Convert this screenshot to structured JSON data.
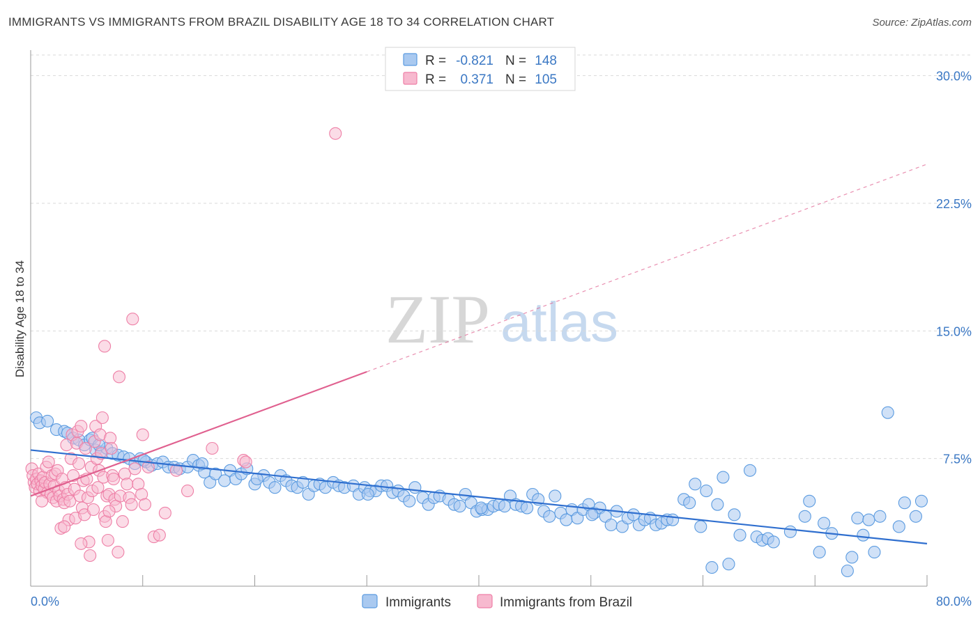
{
  "header": {
    "title": "IMMIGRANTS VS IMMIGRANTS FROM BRAZIL DISABILITY AGE 18 TO 34 CORRELATION CHART",
    "source": "Source: ZipAtlas.com"
  },
  "watermark": {
    "zip": "ZIP",
    "atlas": "atlas"
  },
  "colors": {
    "blue": "#5b9be0",
    "blue_fill": "#a9c9f0",
    "blue_line": "#2f6fcf",
    "pink": "#ee7fa6",
    "pink_fill": "#f7b9cf",
    "pink_line": "#e0608f",
    "axis_text": "#3b78c4",
    "grid": "#d9d9d9"
  },
  "legend": {
    "rows": [
      {
        "r_label": "R =",
        "r_value": "-0.821",
        "n_label": "N =",
        "n_value": "148"
      },
      {
        "r_label": "R =",
        "r_value": "0.371",
        "n_label": "N =",
        "n_value": "105"
      }
    ]
  },
  "chart_data": {
    "type": "scatter",
    "title": "IMMIGRANTS VS IMMIGRANTS FROM BRAZIL DISABILITY AGE 18 TO 34 CORRELATION CHART",
    "xlabel": "",
    "ylabel": "Disability Age 18 to 34",
    "xlim": [
      0,
      80
    ],
    "ylim": [
      0,
      31.5
    ],
    "x_tick_labels": [
      "0.0%",
      "80.0%"
    ],
    "y_ticks": [
      7.5,
      15.0,
      22.5,
      30.0
    ],
    "y_tick_labels": [
      "7.5%",
      "15.0%",
      "22.5%",
      "30.0%"
    ],
    "grid": true,
    "series": [
      {
        "name": "Immigrants",
        "color": "#5b9be0",
        "R": -0.821,
        "N": 148,
        "trend": {
          "x": [
            0,
            80
          ],
          "y": [
            8.0,
            2.5
          ],
          "dashed_extension": false
        },
        "points": [
          [
            0.5,
            9.9
          ],
          [
            0.8,
            9.6
          ],
          [
            1.5,
            9.7
          ],
          [
            2.3,
            9.2
          ],
          [
            3,
            9.1
          ],
          [
            3.3,
            9.0
          ],
          [
            3.8,
            8.7
          ],
          [
            4.3,
            8.6
          ],
          [
            4.8,
            8.3
          ],
          [
            5.3,
            8.6
          ],
          [
            5.8,
            8.0
          ],
          [
            6.3,
            7.9
          ],
          [
            6.8,
            8.1
          ],
          [
            7.3,
            7.8
          ],
          [
            7.8,
            7.7
          ],
          [
            8.3,
            7.6
          ],
          [
            8.8,
            7.5
          ],
          [
            9.3,
            7.2
          ],
          [
            9.8,
            7.5
          ],
          [
            10.3,
            7.3
          ],
          [
            10.8,
            7.1
          ],
          [
            11.3,
            7.2
          ],
          [
            11.8,
            7.3
          ],
          [
            12.3,
            7.0
          ],
          [
            12.8,
            7.0
          ],
          [
            13.3,
            6.9
          ],
          [
            14,
            7.0
          ],
          [
            14.5,
            7.4
          ],
          [
            15,
            7.1
          ],
          [
            15.5,
            6.7
          ],
          [
            16,
            6.1
          ],
          [
            16.5,
            6.6
          ],
          [
            17.3,
            6.2
          ],
          [
            17.8,
            6.8
          ],
          [
            18.3,
            6.3
          ],
          [
            18.8,
            6.6
          ],
          [
            19.3,
            6.9
          ],
          [
            20,
            6.0
          ],
          [
            20.8,
            6.5
          ],
          [
            21.3,
            6.1
          ],
          [
            21.8,
            5.8
          ],
          [
            22.3,
            6.5
          ],
          [
            22.8,
            6.2
          ],
          [
            23.3,
            5.9
          ],
          [
            23.8,
            5.8
          ],
          [
            24.3,
            6.1
          ],
          [
            24.8,
            5.4
          ],
          [
            25.3,
            5.9
          ],
          [
            25.8,
            6.0
          ],
          [
            26.3,
            5.8
          ],
          [
            27,
            6.1
          ],
          [
            27.5,
            5.9
          ],
          [
            28,
            5.8
          ],
          [
            28.8,
            5.9
          ],
          [
            29.3,
            5.4
          ],
          [
            29.8,
            5.8
          ],
          [
            30.3,
            5.6
          ],
          [
            30.8,
            5.6
          ],
          [
            31.3,
            5.9
          ],
          [
            31.8,
            5.9
          ],
          [
            32.3,
            5.5
          ],
          [
            32.8,
            5.6
          ],
          [
            33.3,
            5.3
          ],
          [
            33.8,
            5.0
          ],
          [
            34.3,
            5.8
          ],
          [
            35,
            5.2
          ],
          [
            35.5,
            4.8
          ],
          [
            36,
            5.2
          ],
          [
            36.5,
            5.3
          ],
          [
            37.3,
            5.1
          ],
          [
            37.8,
            4.8
          ],
          [
            38.3,
            4.7
          ],
          [
            38.8,
            5.4
          ],
          [
            39.3,
            4.9
          ],
          [
            39.8,
            4.4
          ],
          [
            40.3,
            4.5
          ],
          [
            40.8,
            4.5
          ],
          [
            41.3,
            4.7
          ],
          [
            41.8,
            4.8
          ],
          [
            42.3,
            4.7
          ],
          [
            42.8,
            5.3
          ],
          [
            43.3,
            4.8
          ],
          [
            43.8,
            4.7
          ],
          [
            44.3,
            4.6
          ],
          [
            44.8,
            5.4
          ],
          [
            45.3,
            5.1
          ],
          [
            45.8,
            4.4
          ],
          [
            46.3,
            4.1
          ],
          [
            46.8,
            5.3
          ],
          [
            47.3,
            4.3
          ],
          [
            47.8,
            3.9
          ],
          [
            48.3,
            4.5
          ],
          [
            48.8,
            4.0
          ],
          [
            49.3,
            4.5
          ],
          [
            49.8,
            4.8
          ],
          [
            50.3,
            4.3
          ],
          [
            50.8,
            4.6
          ],
          [
            51.3,
            4.1
          ],
          [
            51.8,
            3.6
          ],
          [
            52.3,
            4.4
          ],
          [
            52.8,
            3.5
          ],
          [
            53.3,
            4.0
          ],
          [
            53.8,
            4.2
          ],
          [
            54.3,
            3.6
          ],
          [
            54.8,
            3.9
          ],
          [
            55.3,
            4.0
          ],
          [
            55.8,
            3.6
          ],
          [
            56.3,
            3.7
          ],
          [
            56.8,
            3.9
          ],
          [
            57.3,
            3.9
          ],
          [
            58.3,
            5.1
          ],
          [
            58.8,
            4.9
          ],
          [
            59.3,
            6.0
          ],
          [
            59.8,
            3.5
          ],
          [
            60.3,
            5.6
          ],
          [
            60.8,
            1.1
          ],
          [
            61.3,
            4.8
          ],
          [
            61.8,
            6.4
          ],
          [
            62.3,
            1.3
          ],
          [
            62.8,
            4.2
          ],
          [
            63.3,
            3.0
          ],
          [
            64.2,
            6.8
          ],
          [
            64.8,
            2.9
          ],
          [
            65.3,
            2.7
          ],
          [
            65.8,
            2.8
          ],
          [
            66.3,
            2.6
          ],
          [
            67.8,
            3.2
          ],
          [
            69.1,
            4.1
          ],
          [
            69.5,
            5.0
          ],
          [
            70.4,
            2.0
          ],
          [
            70.8,
            3.7
          ],
          [
            71.5,
            3.1
          ],
          [
            72.9,
            0.9
          ],
          [
            73.3,
            1.7
          ],
          [
            73.8,
            4.0
          ],
          [
            74.3,
            3.0
          ],
          [
            74.8,
            3.9
          ],
          [
            75.3,
            2.0
          ],
          [
            75.8,
            4.1
          ],
          [
            76.5,
            10.2
          ],
          [
            77.5,
            3.5
          ],
          [
            78,
            4.9
          ],
          [
            79,
            4.1
          ],
          [
            79.5,
            5.0
          ],
          [
            5.5,
            8.7
          ],
          [
            6.1,
            8.3
          ],
          [
            10.1,
            7.4
          ],
          [
            15.3,
            7.2
          ],
          [
            20.2,
            6.3
          ],
          [
            30.1,
            5.4
          ],
          [
            40.2,
            4.6
          ],
          [
            50.1,
            4.2
          ]
        ]
      },
      {
        "name": "Immigrants from Brazil",
        "color": "#ee7fa6",
        "R": 0.371,
        "N": 105,
        "trend": {
          "x": [
            0,
            30
          ],
          "y": [
            5.3,
            12.6
          ],
          "dashed_extension": {
            "x": [
              30,
              80
            ],
            "y": [
              12.6,
              24.8
            ]
          }
        },
        "points": [
          [
            0.1,
            6.9
          ],
          [
            0.2,
            6.5
          ],
          [
            0.3,
            6.1
          ],
          [
            0.4,
            5.8
          ],
          [
            0.5,
            6.3
          ],
          [
            0.6,
            6.0
          ],
          [
            0.7,
            6.6
          ],
          [
            0.8,
            5.6
          ],
          [
            0.9,
            6.2
          ],
          [
            1.0,
            5.9
          ],
          [
            1.1,
            6.4
          ],
          [
            1.2,
            5.7
          ],
          [
            1.3,
            6.1
          ],
          [
            1.4,
            7.0
          ],
          [
            1.5,
            5.5
          ],
          [
            1.6,
            7.3
          ],
          [
            1.7,
            6.0
          ],
          [
            1.8,
            5.4
          ],
          [
            1.9,
            6.5
          ],
          [
            2.0,
            5.2
          ],
          [
            2.1,
            5.9
          ],
          [
            2.2,
            6.6
          ],
          [
            2.3,
            5.0
          ],
          [
            2.4,
            6.8
          ],
          [
            2.5,
            5.6
          ],
          [
            2.6,
            5.3
          ],
          [
            2.7,
            3.4
          ],
          [
            2.8,
            6.3
          ],
          [
            2.9,
            5.1
          ],
          [
            3.0,
            4.9
          ],
          [
            3.1,
            5.8
          ],
          [
            3.2,
            8.3
          ],
          [
            3.3,
            5.4
          ],
          [
            3.4,
            3.9
          ],
          [
            3.5,
            5.0
          ],
          [
            3.6,
            7.5
          ],
          [
            3.7,
            8.9
          ],
          [
            3.8,
            6.5
          ],
          [
            3.9,
            5.7
          ],
          [
            4.0,
            4.0
          ],
          [
            4.1,
            8.4
          ],
          [
            4.2,
            9.1
          ],
          [
            4.3,
            7.2
          ],
          [
            4.4,
            5.3
          ],
          [
            4.5,
            9.4
          ],
          [
            4.6,
            4.6
          ],
          [
            4.7,
            6.2
          ],
          [
            4.8,
            4.2
          ],
          [
            4.9,
            8.1
          ],
          [
            5.0,
            6.3
          ],
          [
            5.1,
            5.2
          ],
          [
            5.2,
            2.6
          ],
          [
            5.3,
            1.8
          ],
          [
            5.4,
            7.0
          ],
          [
            5.5,
            5.6
          ],
          [
            5.6,
            4.5
          ],
          [
            5.7,
            8.5
          ],
          [
            5.8,
            9.4
          ],
          [
            5.9,
            7.5
          ],
          [
            6.0,
            5.8
          ],
          [
            6.1,
            6.8
          ],
          [
            6.2,
            8.9
          ],
          [
            6.3,
            7.8
          ],
          [
            6.4,
            9.9
          ],
          [
            6.5,
            6.4
          ],
          [
            6.6,
            4.1
          ],
          [
            6.7,
            3.8
          ],
          [
            6.8,
            5.3
          ],
          [
            6.9,
            2.7
          ],
          [
            7.0,
            5.4
          ],
          [
            7.1,
            8.7
          ],
          [
            7.2,
            8.1
          ],
          [
            7.3,
            6.5
          ],
          [
            7.4,
            6.3
          ],
          [
            7.5,
            5.1
          ],
          [
            7.6,
            4.7
          ],
          [
            7.8,
            2.0
          ],
          [
            8.0,
            5.3
          ],
          [
            8.2,
            3.8
          ],
          [
            8.4,
            6.6
          ],
          [
            8.6,
            6.0
          ],
          [
            8.8,
            5.2
          ],
          [
            9.0,
            4.8
          ],
          [
            9.3,
            6.9
          ],
          [
            9.6,
            6.0
          ],
          [
            9.9,
            5.4
          ],
          [
            10.2,
            4.8
          ],
          [
            10.5,
            7.0
          ],
          [
            11.0,
            2.9
          ],
          [
            11.5,
            3.0
          ],
          [
            12.0,
            4.3
          ],
          [
            13.0,
            6.8
          ],
          [
            14.0,
            5.6
          ],
          [
            16.2,
            8.1
          ],
          [
            19.0,
            7.4
          ],
          [
            19.2,
            7.3
          ],
          [
            6.6,
            14.1
          ],
          [
            7.9,
            12.3
          ],
          [
            9.1,
            15.7
          ],
          [
            10.0,
            8.9
          ],
          [
            27.2,
            26.6
          ],
          [
            7.0,
            4.4
          ],
          [
            4.5,
            2.5
          ],
          [
            3.0,
            3.5
          ],
          [
            1.0,
            5.0
          ]
        ]
      }
    ]
  },
  "bottom_legend": {
    "items": [
      "Immigrants",
      "Immigrants from Brazil"
    ]
  }
}
